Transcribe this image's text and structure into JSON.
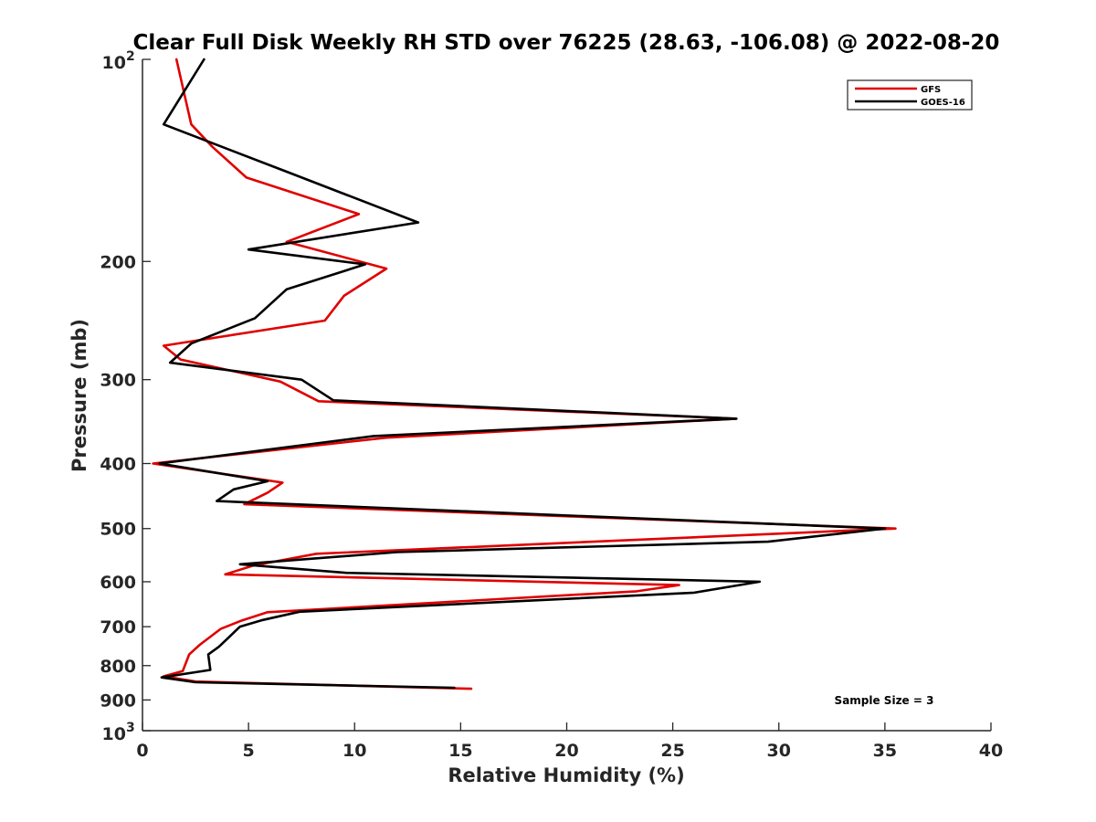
{
  "chart_data": {
    "type": "line",
    "title": "Clear Full Disk Weekly RH STD over 76225 (28.63, -106.08) @ 2022-08-20",
    "xlabel": "Relative Humidity (%)",
    "ylabel": "Pressure (mb)",
    "xlim": [
      0,
      40
    ],
    "ylim": [
      100,
      1000
    ],
    "y_scale": "log",
    "y_reversed": true,
    "grid": false,
    "legend_position": "top-right",
    "x_ticks": [
      "0",
      "5",
      "10",
      "15",
      "20",
      "25",
      "30",
      "35",
      "40"
    ],
    "y_ticks": [
      {
        "value": 100,
        "base": "10",
        "exp": "2"
      },
      {
        "value": 200,
        "label": "200"
      },
      {
        "value": 300,
        "label": "300"
      },
      {
        "value": 400,
        "label": "400"
      },
      {
        "value": 500,
        "label": "500"
      },
      {
        "value": 600,
        "label": "600"
      },
      {
        "value": 700,
        "label": "700"
      },
      {
        "value": 800,
        "label": "800"
      },
      {
        "value": 900,
        "label": "900"
      },
      {
        "value": 1000,
        "base": "10",
        "exp": "3"
      }
    ],
    "annotation": "Sample Size = 3",
    "series": [
      {
        "name": "GFS",
        "color": "#e00000",
        "points": [
          [
            1.6,
            100
          ],
          [
            2.3,
            125
          ],
          [
            3.3,
            135
          ],
          [
            4.9,
            150
          ],
          [
            10.2,
            170
          ],
          [
            6.8,
            187
          ],
          [
            11.5,
            205
          ],
          [
            9.5,
            225
          ],
          [
            8.6,
            245
          ],
          [
            1.0,
            267
          ],
          [
            1.8,
            280
          ],
          [
            6.5,
            302
          ],
          [
            8.3,
            323
          ],
          [
            28.0,
            343
          ],
          [
            11.5,
            366
          ],
          [
            0.5,
            400
          ],
          [
            6.6,
            427
          ],
          [
            5.9,
            442
          ],
          [
            4.8,
            460
          ],
          [
            35.5,
            500
          ],
          [
            8.2,
            545
          ],
          [
            5.2,
            568
          ],
          [
            3.9,
            585
          ],
          [
            25.3,
            607
          ],
          [
            23.3,
            620
          ],
          [
            5.9,
            666
          ],
          [
            4.7,
            685
          ],
          [
            3.7,
            705
          ],
          [
            2.7,
            745
          ],
          [
            2.2,
            770
          ],
          [
            1.9,
            815
          ],
          [
            1.0,
            830
          ],
          [
            2.5,
            845
          ],
          [
            15.5,
            866
          ]
        ]
      },
      {
        "name": "GOES-16",
        "color": "#000000",
        "points": [
          [
            2.9,
            100
          ],
          [
            1.0,
            125
          ],
          [
            6.8,
            147
          ],
          [
            13.0,
            175
          ],
          [
            5.0,
            192
          ],
          [
            10.5,
            202
          ],
          [
            6.8,
            220
          ],
          [
            5.3,
            243
          ],
          [
            2.3,
            265
          ],
          [
            1.3,
            283
          ],
          [
            7.5,
            300
          ],
          [
            9.0,
            322
          ],
          [
            28.0,
            343
          ],
          [
            10.9,
            364
          ],
          [
            0.8,
            400
          ],
          [
            5.9,
            425
          ],
          [
            4.3,
            437
          ],
          [
            3.5,
            455
          ],
          [
            35.0,
            500
          ],
          [
            29.5,
            523
          ],
          [
            12.0,
            542
          ],
          [
            4.6,
            565
          ],
          [
            9.6,
            582
          ],
          [
            29.1,
            600
          ],
          [
            26.0,
            623
          ],
          [
            7.4,
            665
          ],
          [
            5.6,
            685
          ],
          [
            4.6,
            700
          ],
          [
            3.6,
            750
          ],
          [
            3.1,
            770
          ],
          [
            3.2,
            812
          ],
          [
            0.9,
            833
          ],
          [
            2.5,
            847
          ],
          [
            14.7,
            863
          ]
        ]
      }
    ]
  }
}
